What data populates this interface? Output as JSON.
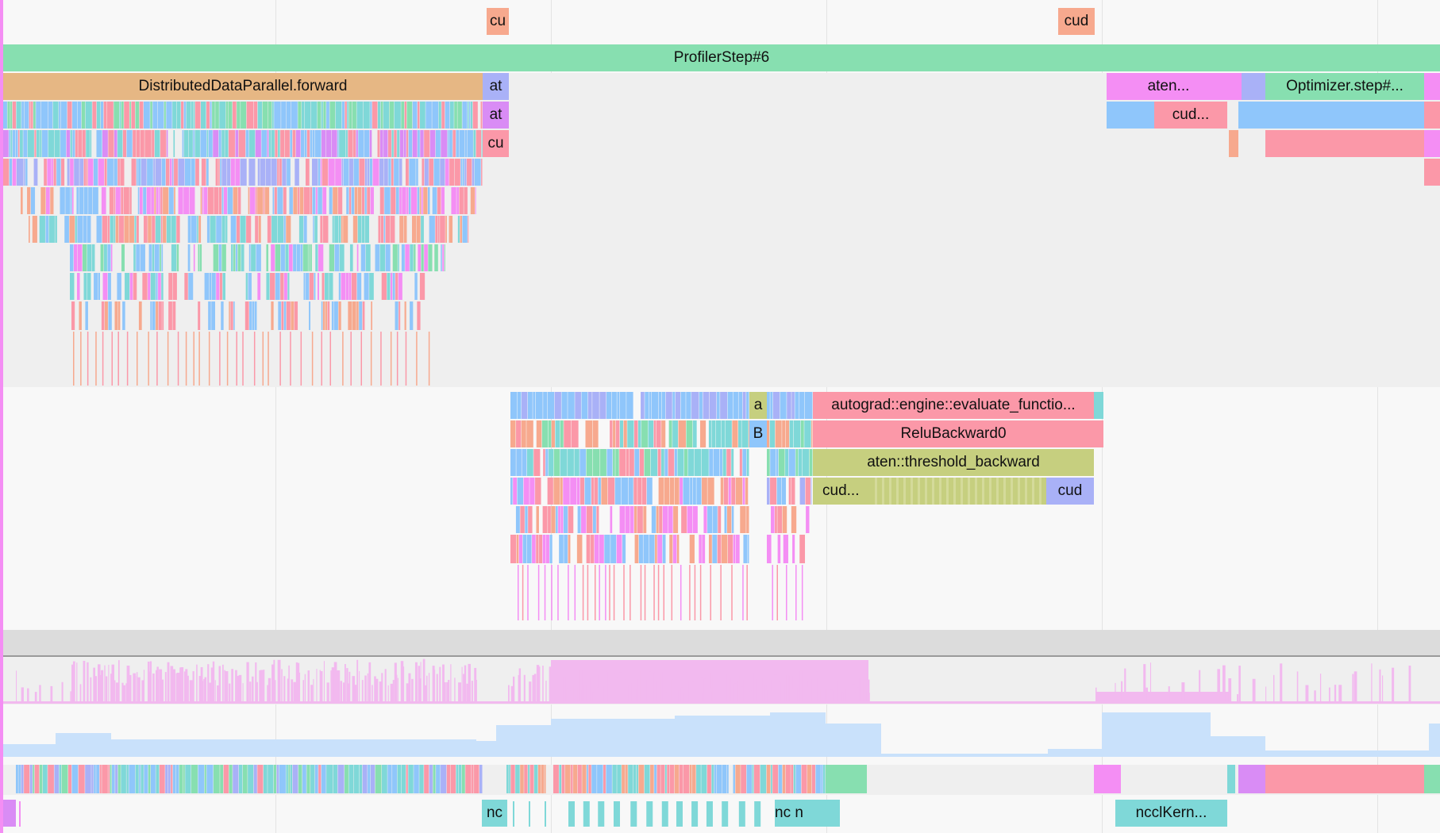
{
  "colors": {
    "green": "#87dfb0",
    "orange": "#e6b784",
    "blue": "#8fc6fb",
    "pink": "#fb98a8",
    "magenta": "#f48ef4",
    "salmon": "#f7a98e",
    "teal": "#7fd8d8",
    "olive": "#c6cf7f",
    "violet": "#a9b1f7",
    "lilac": "#d98cf5",
    "lightviolet": "#f2b9ef",
    "lightblue": "#c9e1fb"
  },
  "top_slices": {
    "cu": "cu",
    "cud": "cud"
  },
  "cpu_thread": {
    "profiler_step": "ProfilerStep#6",
    "ddp_forward": "DistributedDataParallel.forward",
    "at1": "at",
    "at2": "at",
    "cu": "cu",
    "aten": "aten...",
    "optimizer_step": "Optimizer.step#...",
    "cud": "cud..."
  },
  "backward_thread": {
    "a": "a",
    "B": "B",
    "evaluate_function": "autograd::engine::evaluate_functio...",
    "relu_backward": "ReluBackward0",
    "threshold_backward": "aten::threshold_backward",
    "cud1": "cud...",
    "cud2": "cud"
  },
  "gpu_stream": {
    "nc": "nc",
    "nc_n": "nc n",
    "nccl_kernel": "ncclKern..."
  }
}
